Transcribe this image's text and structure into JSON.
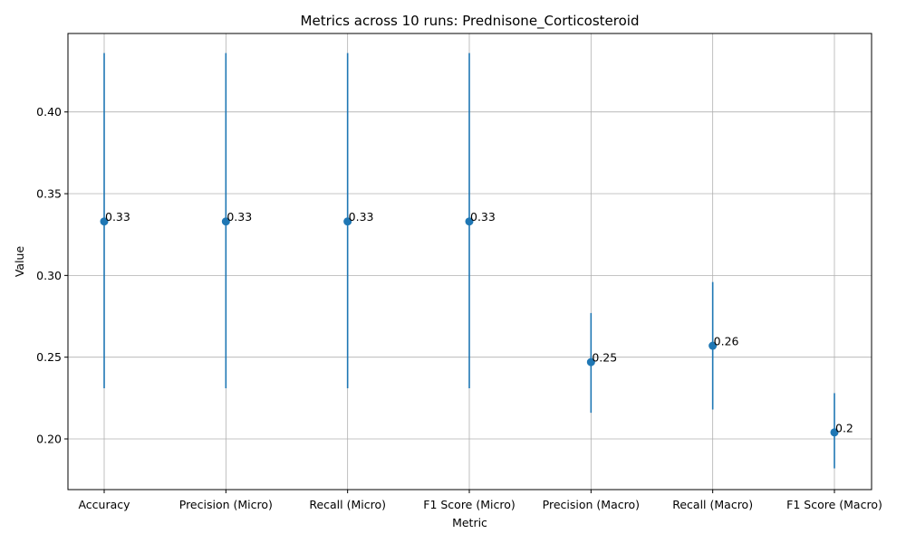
{
  "chart_data": {
    "type": "scatter",
    "title": "Metrics across 10 runs: Prednisone_Corticosteroid",
    "xlabel": "Metric",
    "ylabel": "Value",
    "categories": [
      "Accuracy",
      "Precision (Micro)",
      "Recall (Micro)",
      "F1 Score (Micro)",
      "Precision (Macro)",
      "Recall (Macro)",
      "F1 Score (Macro)"
    ],
    "values": [
      0.333,
      0.333,
      0.333,
      0.333,
      0.247,
      0.257,
      0.204
    ],
    "error_low": [
      0.231,
      0.231,
      0.231,
      0.231,
      0.216,
      0.218,
      0.182
    ],
    "error_high": [
      0.436,
      0.436,
      0.436,
      0.436,
      0.277,
      0.296,
      0.228
    ],
    "data_labels": [
      "0.33",
      "0.33",
      "0.33",
      "0.33",
      "0.25",
      "0.26",
      "0.2"
    ],
    "yticks": [
      "0.20",
      "0.25",
      "0.30",
      "0.35",
      "0.40"
    ],
    "ylim": [
      0.169,
      0.448
    ],
    "grid": true,
    "color": "#1f77b4"
  }
}
